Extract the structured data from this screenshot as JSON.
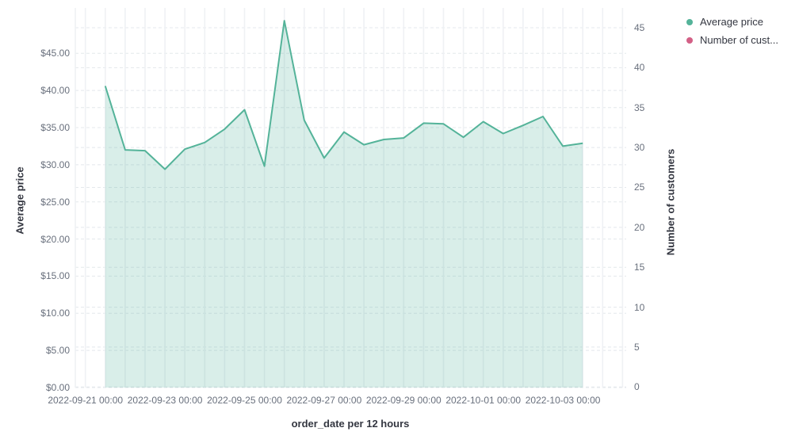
{
  "legend": {
    "items": [
      {
        "label": "Average price",
        "color": "#54b399"
      },
      {
        "label": "Number of cust...",
        "color": "#d36086"
      }
    ]
  },
  "chart_data": {
    "type": "area",
    "xlabel": "order_date per 12 hours",
    "ylabel_left": "Average price",
    "ylabel_right": "Number of customers",
    "x": [
      "2022-09-21 12:00",
      "2022-09-22 00:00",
      "2022-09-22 12:00",
      "2022-09-23 00:00",
      "2022-09-23 12:00",
      "2022-09-24 00:00",
      "2022-09-24 12:00",
      "2022-09-25 00:00",
      "2022-09-25 12:00",
      "2022-09-26 00:00",
      "2022-09-26 12:00",
      "2022-09-27 00:00",
      "2022-09-27 12:00",
      "2022-09-28 00:00",
      "2022-09-28 12:00",
      "2022-09-29 00:00",
      "2022-09-29 12:00",
      "2022-09-30 00:00",
      "2022-09-30 12:00",
      "2022-10-01 00:00",
      "2022-10-01 12:00",
      "2022-10-02 00:00",
      "2022-10-02 12:00",
      "2022-10-03 00:00",
      "2022-10-03 12:00"
    ],
    "series": [
      {
        "name": "Average price",
        "axis": "left",
        "color": "#54b399",
        "fill_opacity": 0.22,
        "values": [
          40.6,
          32.0,
          31.9,
          29.4,
          32.1,
          33.0,
          34.8,
          37.4,
          29.8,
          49.4,
          36.0,
          30.9,
          34.4,
          32.7,
          33.4,
          33.6,
          35.6,
          35.5,
          33.7,
          35.8,
          34.2,
          35.3,
          36.5,
          32.5,
          32.9
        ]
      },
      {
        "name": "Number of customers",
        "axis": "right",
        "color": "#d36086",
        "fill_opacity": 0.22,
        "values": []
      }
    ],
    "x_tick_labels": [
      "2022-09-21 00:00",
      "2022-09-23 00:00",
      "2022-09-25 00:00",
      "2022-09-27 00:00",
      "2022-09-29 00:00",
      "2022-10-01 00:00",
      "2022-10-03 00:00"
    ],
    "y_left": {
      "tick_labels": [
        "$0.00",
        "$5.00",
        "$10.00",
        "$15.00",
        "$20.00",
        "$25.00",
        "$30.00",
        "$35.00",
        "$40.00",
        "$45.00"
      ],
      "tick_values": [
        0,
        5,
        10,
        15,
        20,
        25,
        30,
        35,
        40,
        45
      ],
      "range_shown": [
        0,
        45
      ]
    },
    "y_right": {
      "tick_labels": [
        "0",
        "5",
        "10",
        "15",
        "20",
        "25",
        "30",
        "35",
        "40",
        "45"
      ],
      "tick_values": [
        0,
        5,
        10,
        15,
        20,
        25,
        30,
        35,
        40,
        45
      ],
      "range_shown": [
        0,
        45
      ]
    },
    "grid": {
      "horizontal": "dashed",
      "vertical": "solid"
    },
    "legend_position": "top-right",
    "colors": {
      "line": "#54b399",
      "fill": "rgba(84,179,153,0.22)",
      "grid_h": "#e4e8ec",
      "grid_v": "#eff1f4",
      "tick_text": "#69707d",
      "title_text": "#343741"
    }
  }
}
